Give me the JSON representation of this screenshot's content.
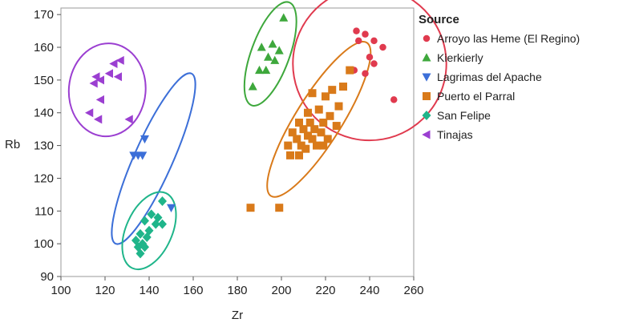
{
  "chart_data": {
    "type": "scatter",
    "xlabel": "Zr",
    "ylabel": "Rb",
    "xlim": [
      100,
      260
    ],
    "ylim": [
      90,
      172
    ],
    "x_ticks": [
      100,
      120,
      140,
      160,
      180,
      200,
      220,
      240,
      260
    ],
    "y_ticks": [
      90,
      100,
      110,
      120,
      130,
      140,
      150,
      160,
      170
    ],
    "grid": false,
    "legend_placement": "right",
    "legend_title": "Source",
    "series": [
      {
        "name": "Arroyo las Heme (El Regino)",
        "marker": "circle",
        "color": "#e03a4e",
        "points": [
          [
            234,
            165
          ],
          [
            238,
            164
          ],
          [
            235,
            162
          ],
          [
            242,
            162
          ],
          [
            246,
            160
          ],
          [
            240,
            157
          ],
          [
            242,
            155
          ],
          [
            233,
            153
          ],
          [
            238,
            152
          ],
          [
            251,
            144
          ]
        ],
        "ellipse": {
          "center": [
            240,
            155
          ],
          "rx": 28,
          "ry": 20,
          "angle": -55
        }
      },
      {
        "name": "Kierkierly",
        "marker": "triangle-up",
        "color": "#3ea83c",
        "points": [
          [
            201,
            169
          ],
          [
            196,
            161
          ],
          [
            191,
            160
          ],
          [
            199,
            159
          ],
          [
            194,
            157
          ],
          [
            197,
            156
          ],
          [
            190,
            153
          ],
          [
            193,
            153
          ],
          [
            187,
            148
          ]
        ],
        "ellipse": {
          "center": [
            195,
            158
          ],
          "rx": 20,
          "ry": 5,
          "angle": -70
        }
      },
      {
        "name": "Lagrimas del Apache",
        "marker": "triangle-down",
        "color": "#3c6fd8",
        "points": [
          [
            138,
            132
          ],
          [
            133,
            127
          ],
          [
            135,
            127
          ],
          [
            137,
            127
          ],
          [
            150,
            111
          ]
        ],
        "ellipse": {
          "center": [
            142,
            126
          ],
          "rx": 34,
          "ry": 5,
          "angle": -66
        }
      },
      {
        "name": "Puerto el Parral",
        "marker": "square",
        "color": "#d97a1a",
        "points": [
          [
            231,
            153
          ],
          [
            214,
            146
          ],
          [
            223,
            147
          ],
          [
            220,
            145
          ],
          [
            228,
            148
          ],
          [
            226,
            142
          ],
          [
            217,
            141
          ],
          [
            212,
            140
          ],
          [
            222,
            139
          ],
          [
            208,
            137
          ],
          [
            213,
            137
          ],
          [
            219,
            137
          ],
          [
            225,
            136
          ],
          [
            210,
            135
          ],
          [
            215,
            135
          ],
          [
            205,
            134
          ],
          [
            212,
            133
          ],
          [
            218,
            134
          ],
          [
            207,
            132
          ],
          [
            214,
            132
          ],
          [
            221,
            132
          ],
          [
            203,
            130
          ],
          [
            209,
            130
          ],
          [
            216,
            130
          ],
          [
            211,
            129
          ],
          [
            204,
            127
          ],
          [
            208,
            127
          ],
          [
            219,
            130
          ],
          [
            186,
            111
          ],
          [
            199,
            111
          ]
        ],
        "ellipse": {
          "center": [
            217,
            138
          ],
          "rx": 33,
          "ry": 6,
          "angle": -58
        }
      },
      {
        "name": "San Felipe",
        "marker": "diamond",
        "color": "#1fb58a",
        "points": [
          [
            146,
            113
          ],
          [
            141,
            109
          ],
          [
            144,
            108
          ],
          [
            138,
            107
          ],
          [
            143,
            106
          ],
          [
            146,
            106
          ],
          [
            140,
            104
          ],
          [
            136,
            103
          ],
          [
            139,
            102
          ],
          [
            134,
            101
          ],
          [
            137,
            100
          ],
          [
            135,
            99
          ],
          [
            138,
            99
          ],
          [
            136,
            97
          ]
        ],
        "ellipse": {
          "center": [
            140,
            104
          ],
          "rx": 15,
          "ry": 6,
          "angle": -66
        }
      },
      {
        "name": "Tinajas",
        "marker": "triangle-left",
        "color": "#9b3fd1",
        "points": [
          [
            127,
            156
          ],
          [
            124,
            155
          ],
          [
            122,
            152
          ],
          [
            126,
            151
          ],
          [
            116,
            151
          ],
          [
            118,
            150
          ],
          [
            115,
            149
          ],
          [
            118,
            144
          ],
          [
            113,
            140
          ],
          [
            117,
            138
          ],
          [
            131,
            138
          ]
        ],
        "ellipse": {
          "center": [
            121,
            147
          ],
          "rx": 17,
          "ry": 10,
          "angle": -85
        }
      }
    ]
  }
}
